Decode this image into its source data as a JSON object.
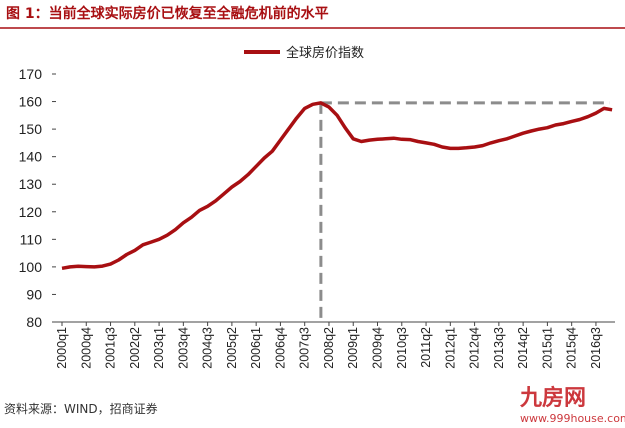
{
  "chart_data": {
    "type": "line",
    "title": "图 1：当前全球实际房价已恢复至全融危机前的水平",
    "source": "资料来源：WIND，招商证券",
    "watermark": [
      "九房网",
      "www.999house.com"
    ],
    "categories": [
      "2000q1",
      null,
      null,
      "2000q4",
      null,
      null,
      "2001q3",
      null,
      null,
      "2002q2",
      null,
      null,
      "2003q1",
      null,
      null,
      "2003q4",
      null,
      null,
      "2004q3",
      null,
      null,
      "2005q2",
      null,
      null,
      "2006q1",
      null,
      null,
      "2006q4",
      null,
      null,
      "2007q3",
      null,
      null,
      "2008q2",
      null,
      null,
      "2009q1",
      null,
      null,
      "2009q4",
      null,
      null,
      "2010q3",
      null,
      null,
      "2011q2",
      null,
      null,
      "2012q1",
      null,
      null,
      "2012q4",
      null,
      null,
      "2013q3",
      null,
      null,
      "2014q2",
      null,
      null,
      "2015q1",
      null,
      null,
      "2015q4",
      null,
      null,
      "2016q3",
      null,
      null
    ],
    "series": [
      {
        "name": "全球房价指数",
        "color": "#a80f12",
        "values": [
          99.5,
          100,
          100.2,
          100.1,
          100,
          100.3,
          101,
          102.5,
          104.5,
          106,
          108,
          109,
          110,
          111.5,
          113.5,
          116,
          118,
          120.5,
          122,
          124,
          126.5,
          129,
          131,
          133.5,
          136.5,
          139.5,
          142,
          146,
          150,
          154,
          157.5,
          159,
          159.5,
          158,
          155,
          150.5,
          146.5,
          145.5,
          146,
          146.3,
          146.5,
          146.7,
          146.3,
          146.2,
          145.5,
          145,
          144.5,
          143.5,
          143,
          143,
          143.2,
          143.5,
          144,
          145,
          145.8,
          146.5,
          147.5,
          148.5,
          149.3,
          150,
          150.5,
          151.5,
          152,
          152.8,
          153.5,
          154.5,
          155.8,
          157.5,
          157
        ]
      }
    ],
    "reference_line": {
      "value": 159.5,
      "color": "#8c8c8c"
    },
    "ylim": [
      80,
      170
    ],
    "yticks": [
      80,
      90,
      100,
      110,
      120,
      130,
      140,
      150,
      160,
      170
    ]
  }
}
